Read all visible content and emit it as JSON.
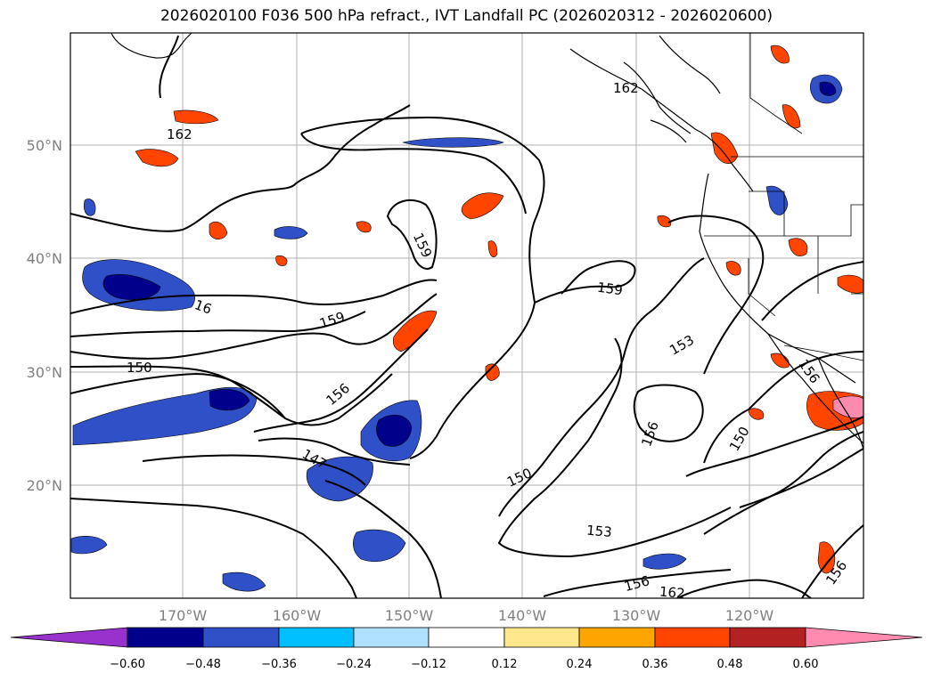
{
  "title": "2026020100 F036 500 hPa refract., IVT Landfall PC (2026020312 - 2026020600)",
  "lat_labels": [
    "50°N",
    "40°N",
    "30°N",
    "20°N"
  ],
  "lon_labels": [
    "170°W",
    "160°W",
    "150°W",
    "140°W",
    "130°W",
    "120°W"
  ],
  "contour_labels": [
    "162",
    "162",
    "159",
    "159",
    "159",
    "16",
    "150",
    "156",
    "153",
    "156",
    "150",
    "147",
    "150",
    "153",
    "156",
    "162",
    "156",
    "156"
  ],
  "colorbar": {
    "tick_labels": [
      "−0.60",
      "−0.48",
      "−0.36",
      "−0.24",
      "−0.12",
      "0.12",
      "0.24",
      "0.36",
      "0.48",
      "0.60"
    ],
    "colors": [
      "#9932cc",
      "#00008b",
      "#3050c8",
      "#00bfff",
      "#b0e0ff",
      "#ffffff",
      "#ffe88c",
      "#ffa500",
      "#ff4500",
      "#b22222",
      "#ff8cb0"
    ]
  },
  "colors": {
    "negative_strong": "#00008b",
    "negative_mid": "#3050c8",
    "negative_light": "#00bfff",
    "negative_faint": "#b0e0ff",
    "positive_faint": "#ffe88c",
    "positive_light": "#ffa500",
    "positive_mid": "#ff4500",
    "positive_strong": "#b22222",
    "positive_max": "#ff8cb0",
    "gridline": "#b0b0b0",
    "contour": "#000000"
  }
}
